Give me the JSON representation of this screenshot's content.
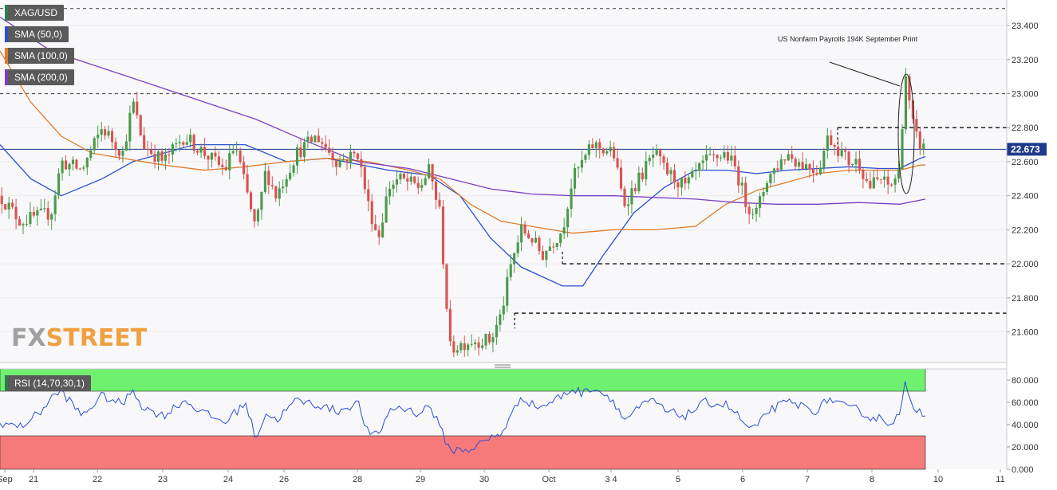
{
  "chips": {
    "symbol": "XAG/USD",
    "sma50": "SMA (50,0)",
    "sma100": "SMA (100,0)",
    "sma200": "SMA (200,0)",
    "rsi": "RSI (14,70,30,1)"
  },
  "colors": {
    "candle_up": "#4a9a4a",
    "candle_down": "#d9534f",
    "sma50": "#2a4fd4",
    "sma100": "#e07b2a",
    "sma200": "#7b3fc4",
    "rsi_line": "#2a4fd4",
    "rsi_overbought_zone": "#6ff06f",
    "rsi_oversold_zone": "#f77a7a",
    "price_line": "#1f3a8a",
    "price_tag": "#1f3a8a"
  },
  "watermark": {
    "fx": "FX",
    "street": "STREET"
  },
  "annotation": "US Nonfarm Payrolls 194K September Print",
  "current_price": "22.673",
  "price_axis_ticks": [
    "23.400",
    "23.200",
    "23.000",
    "22.800",
    "22.600",
    "22.400",
    "22.200",
    "22.000",
    "21.800",
    "21.600"
  ],
  "rsi_axis_ticks": [
    "80.000",
    "60.000",
    "40.000",
    "20.000",
    "0.000"
  ],
  "date_labels": [
    "Sep",
    "21",
    "22",
    "23",
    "24",
    "26",
    "28",
    "29",
    "30",
    "Oct",
    "3 4",
    "5",
    "6",
    "7",
    "8",
    "10",
    "11"
  ],
  "chart_data": [
    {
      "type": "candlestick",
      "title": "XAG/USD",
      "ylim": [
        21.42,
        23.55
      ],
      "reference_levels": [
        23.5,
        23.0,
        22.8,
        22.0,
        21.71
      ],
      "current_price": 22.673,
      "close_path": [
        [
          0.0,
          22.4
        ],
        [
          0.02,
          22.25
        ],
        [
          0.05,
          22.3
        ],
        [
          0.06,
          22.6
        ],
        [
          0.08,
          22.55
        ],
        [
          0.1,
          22.8
        ],
        [
          0.12,
          22.65
        ],
        [
          0.13,
          22.95
        ],
        [
          0.14,
          22.7
        ],
        [
          0.16,
          22.6
        ],
        [
          0.18,
          22.75
        ],
        [
          0.2,
          22.65
        ],
        [
          0.22,
          22.55
        ],
        [
          0.23,
          22.7
        ],
        [
          0.25,
          22.2
        ],
        [
          0.26,
          22.55
        ],
        [
          0.27,
          22.4
        ],
        [
          0.29,
          22.65
        ],
        [
          0.31,
          22.75
        ],
        [
          0.33,
          22.6
        ],
        [
          0.35,
          22.65
        ],
        [
          0.36,
          22.35
        ],
        [
          0.37,
          22.15
        ],
        [
          0.38,
          22.45
        ],
        [
          0.39,
          22.5
        ],
        [
          0.41,
          22.45
        ],
        [
          0.42,
          22.55
        ],
        [
          0.43,
          22.3
        ],
        [
          0.44,
          21.5
        ],
        [
          0.46,
          21.55
        ],
        [
          0.48,
          21.55
        ],
        [
          0.49,
          21.7
        ],
        [
          0.5,
          22.0
        ],
        [
          0.51,
          22.2
        ],
        [
          0.52,
          22.15
        ],
        [
          0.53,
          22.05
        ],
        [
          0.55,
          22.2
        ],
        [
          0.56,
          22.5
        ],
        [
          0.57,
          22.6
        ],
        [
          0.58,
          22.7
        ],
        [
          0.6,
          22.65
        ],
        [
          0.61,
          22.35
        ],
        [
          0.63,
          22.55
        ],
        [
          0.64,
          22.65
        ],
        [
          0.65,
          22.55
        ],
        [
          0.67,
          22.45
        ],
        [
          0.69,
          22.6
        ],
        [
          0.71,
          22.65
        ],
        [
          0.72,
          22.55
        ],
        [
          0.73,
          22.35
        ],
        [
          0.74,
          22.3
        ],
        [
          0.75,
          22.5
        ],
        [
          0.77,
          22.65
        ],
        [
          0.78,
          22.6
        ],
        [
          0.8,
          22.55
        ],
        [
          0.81,
          22.75
        ],
        [
          0.83,
          22.6
        ],
        [
          0.84,
          22.6
        ],
        [
          0.85,
          22.45
        ],
        [
          0.86,
          22.5
        ],
        [
          0.87,
          22.45
        ],
        [
          0.88,
          22.55
        ],
        [
          0.885,
          23.15
        ],
        [
          0.89,
          22.9
        ],
        [
          0.895,
          22.75
        ],
        [
          0.9,
          22.7
        ],
        [
          0.905,
          22.673
        ]
      ],
      "series": [
        {
          "name": "SMA (50,0)",
          "path": [
            [
              0.0,
              22.7
            ],
            [
              0.03,
              22.5
            ],
            [
              0.06,
              22.4
            ],
            [
              0.1,
              22.5
            ],
            [
              0.13,
              22.6
            ],
            [
              0.16,
              22.65
            ],
            [
              0.19,
              22.7
            ],
            [
              0.24,
              22.7
            ],
            [
              0.28,
              22.6
            ],
            [
              0.32,
              22.62
            ],
            [
              0.38,
              22.55
            ],
            [
              0.42,
              22.52
            ],
            [
              0.45,
              22.4
            ],
            [
              0.48,
              22.15
            ],
            [
              0.51,
              21.98
            ],
            [
              0.55,
              21.87
            ],
            [
              0.57,
              21.87
            ],
            [
              0.59,
              22.05
            ],
            [
              0.62,
              22.3
            ],
            [
              0.65,
              22.45
            ],
            [
              0.68,
              22.55
            ],
            [
              0.71,
              22.55
            ],
            [
              0.74,
              22.53
            ],
            [
              0.77,
              22.55
            ],
            [
              0.8,
              22.56
            ],
            [
              0.83,
              22.57
            ],
            [
              0.86,
              22.56
            ],
            [
              0.88,
              22.56
            ],
            [
              0.9,
              22.62
            ],
            [
              0.905,
              22.63
            ]
          ]
        },
        {
          "name": "SMA (100,0)",
          "path": [
            [
              0.0,
              23.25
            ],
            [
              0.03,
              22.95
            ],
            [
              0.06,
              22.75
            ],
            [
              0.09,
              22.65
            ],
            [
              0.12,
              22.62
            ],
            [
              0.16,
              22.58
            ],
            [
              0.2,
              22.55
            ],
            [
              0.24,
              22.57
            ],
            [
              0.28,
              22.6
            ],
            [
              0.32,
              22.62
            ],
            [
              0.36,
              22.6
            ],
            [
              0.4,
              22.55
            ],
            [
              0.43,
              22.5
            ],
            [
              0.46,
              22.35
            ],
            [
              0.49,
              22.25
            ],
            [
              0.52,
              22.22
            ],
            [
              0.56,
              22.18
            ],
            [
              0.6,
              22.2
            ],
            [
              0.64,
              22.2
            ],
            [
              0.68,
              22.22
            ],
            [
              0.71,
              22.35
            ],
            [
              0.74,
              22.43
            ],
            [
              0.77,
              22.48
            ],
            [
              0.8,
              22.53
            ],
            [
              0.83,
              22.55
            ],
            [
              0.86,
              22.55
            ],
            [
              0.88,
              22.55
            ],
            [
              0.9,
              22.58
            ],
            [
              0.905,
              22.58
            ]
          ]
        },
        {
          "name": "SMA (200,0)",
          "path": [
            [
              0.0,
              23.45
            ],
            [
              0.05,
              23.25
            ],
            [
              0.1,
              23.15
            ],
            [
              0.15,
              23.05
            ],
            [
              0.2,
              22.95
            ],
            [
              0.25,
              22.85
            ],
            [
              0.3,
              22.72
            ],
            [
              0.35,
              22.6
            ],
            [
              0.4,
              22.56
            ],
            [
              0.44,
              22.5
            ],
            [
              0.48,
              22.44
            ],
            [
              0.52,
              22.41
            ],
            [
              0.56,
              22.4
            ],
            [
              0.6,
              22.4
            ],
            [
              0.64,
              22.39
            ],
            [
              0.68,
              22.38
            ],
            [
              0.72,
              22.36
            ],
            [
              0.76,
              22.35
            ],
            [
              0.8,
              22.35
            ],
            [
              0.84,
              22.36
            ],
            [
              0.88,
              22.35
            ],
            [
              0.905,
              22.38
            ]
          ]
        }
      ]
    },
    {
      "type": "line",
      "title": "RSI (14,70,30,1)",
      "ylim": [
        0,
        90
      ],
      "overbought": 70,
      "oversold": 30,
      "series": [
        {
          "name": "RSI (14,70,30,1)",
          "path": [
            [
              0.0,
              42
            ],
            [
              0.02,
              38
            ],
            [
              0.04,
              52
            ],
            [
              0.05,
              64
            ],
            [
              0.06,
              70
            ],
            [
              0.08,
              48
            ],
            [
              0.1,
              66
            ],
            [
              0.12,
              58
            ],
            [
              0.13,
              72
            ],
            [
              0.14,
              55
            ],
            [
              0.16,
              48
            ],
            [
              0.18,
              62
            ],
            [
              0.2,
              50
            ],
            [
              0.22,
              42
            ],
            [
              0.24,
              60
            ],
            [
              0.25,
              28
            ],
            [
              0.26,
              50
            ],
            [
              0.27,
              44
            ],
            [
              0.29,
              62
            ],
            [
              0.31,
              58
            ],
            [
              0.33,
              52
            ],
            [
              0.35,
              60
            ],
            [
              0.36,
              32
            ],
            [
              0.37,
              30
            ],
            [
              0.38,
              52
            ],
            [
              0.39,
              56
            ],
            [
              0.41,
              50
            ],
            [
              0.42,
              58
            ],
            [
              0.43,
              38
            ],
            [
              0.44,
              17
            ],
            [
              0.46,
              18
            ],
            [
              0.48,
              28
            ],
            [
              0.49,
              32
            ],
            [
              0.5,
              48
            ],
            [
              0.51,
              66
            ],
            [
              0.52,
              58
            ],
            [
              0.53,
              56
            ],
            [
              0.55,
              66
            ],
            [
              0.56,
              72
            ],
            [
              0.57,
              68
            ],
            [
              0.58,
              74
            ],
            [
              0.6,
              62
            ],
            [
              0.61,
              44
            ],
            [
              0.63,
              58
            ],
            [
              0.64,
              62
            ],
            [
              0.65,
              52
            ],
            [
              0.67,
              48
            ],
            [
              0.69,
              60
            ],
            [
              0.71,
              58
            ],
            [
              0.72,
              50
            ],
            [
              0.73,
              38
            ],
            [
              0.74,
              36
            ],
            [
              0.75,
              52
            ],
            [
              0.77,
              60
            ],
            [
              0.78,
              58
            ],
            [
              0.8,
              52
            ],
            [
              0.81,
              64
            ],
            [
              0.83,
              54
            ],
            [
              0.84,
              54
            ],
            [
              0.85,
              46
            ],
            [
              0.86,
              46
            ],
            [
              0.87,
              42
            ],
            [
              0.88,
              48
            ],
            [
              0.885,
              77
            ],
            [
              0.89,
              58
            ],
            [
              0.895,
              55
            ],
            [
              0.9,
              52
            ],
            [
              0.905,
              50
            ]
          ]
        }
      ]
    }
  ]
}
